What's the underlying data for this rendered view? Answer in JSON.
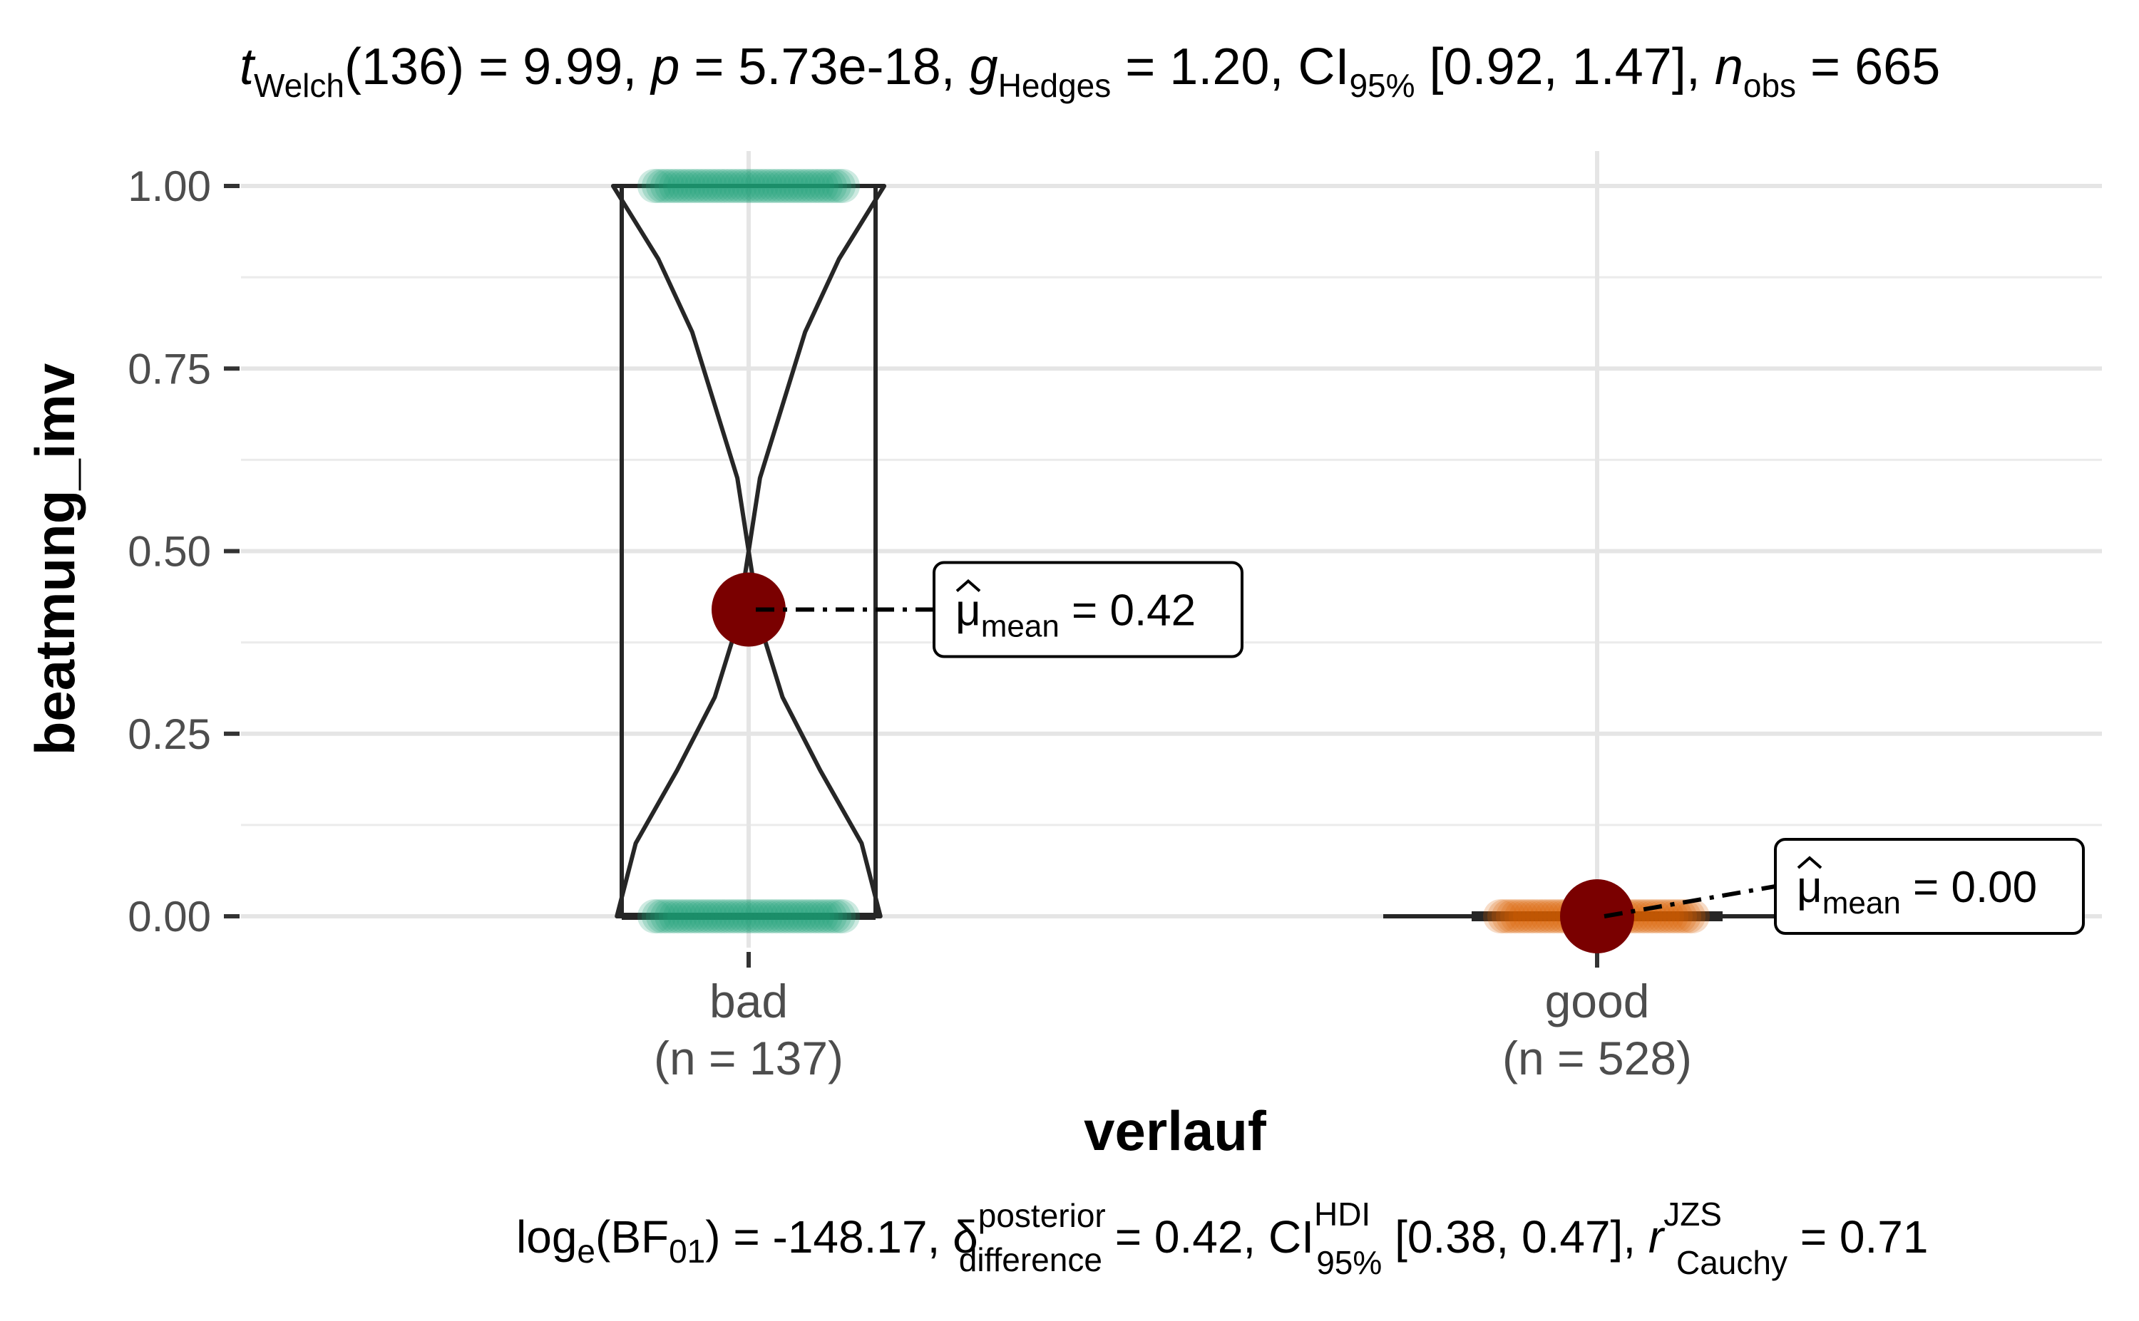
{
  "chart_data": {
    "type": "violin-box",
    "subtitle": {
      "t_label": "t",
      "t_sub": "Welch",
      "t_rest": "(136) = 9.99, ",
      "p_label": "p",
      "p_rest": " = 5.73e-18, ",
      "g_label": "g",
      "g_sub": "Hedges",
      "g_rest": " = 1.20, CI",
      "ci_sub": "95%",
      "ci_rest": " [0.92, 1.47], ",
      "n_label": "n",
      "n_sub": "obs",
      "n_rest": " = 665"
    },
    "caption": {
      "log_label": "log",
      "log_sub": "e",
      "bf_open": "(BF",
      "bf_sub": "01",
      "bf_rest": ") = -148.17, ",
      "delta_label": "δ",
      "delta_sup": "posterior",
      "delta_sub": "difference",
      "delta_rest": " = 0.42, CI",
      "ci_sup": "HDI",
      "ci_sub": "95%",
      "ci_rest": " [0.38, 0.47], ",
      "r_label": "r",
      "r_sup": "JZS",
      "r_sub": "Cauchy",
      "r_rest": " = 0.71"
    },
    "xlabel": "verlauf",
    "ylabel": "beatmung_imv",
    "ylim": [
      -0.05,
      1.02
    ],
    "yticks": [
      {
        "value": 0.0,
        "label": "0.00"
      },
      {
        "value": 0.25,
        "label": "0.25"
      },
      {
        "value": 0.5,
        "label": "0.50"
      },
      {
        "value": 0.75,
        "label": "0.75"
      },
      {
        "value": 1.0,
        "label": "1.00"
      }
    ],
    "groups": [
      {
        "category": "bad",
        "n_label": "(n = 137)",
        "mean": 0.42,
        "mean_label_mu": "μ",
        "mean_label_sub": "mean",
        "mean_label_rest": " = 0.42",
        "point_color": "#1b9e77",
        "q1": 0.0,
        "median": 0.0,
        "q3": 1.0,
        "violin_density": [
          0.7,
          0.6,
          0.38,
          0.18,
          0.06,
          0.0,
          0.06,
          0.18,
          0.3,
          0.48,
          0.72
        ]
      },
      {
        "category": "good",
        "n_label": "(n = 528)",
        "mean": 0.0,
        "mean_label_mu": "μ",
        "mean_label_sub": "mean",
        "mean_label_rest": " = 0.00",
        "point_color": "#d95f02",
        "q1": 0.0,
        "median": 0.0,
        "q3": 0.0
      }
    ],
    "mean_point_color": "#7a0000",
    "grid": true
  }
}
